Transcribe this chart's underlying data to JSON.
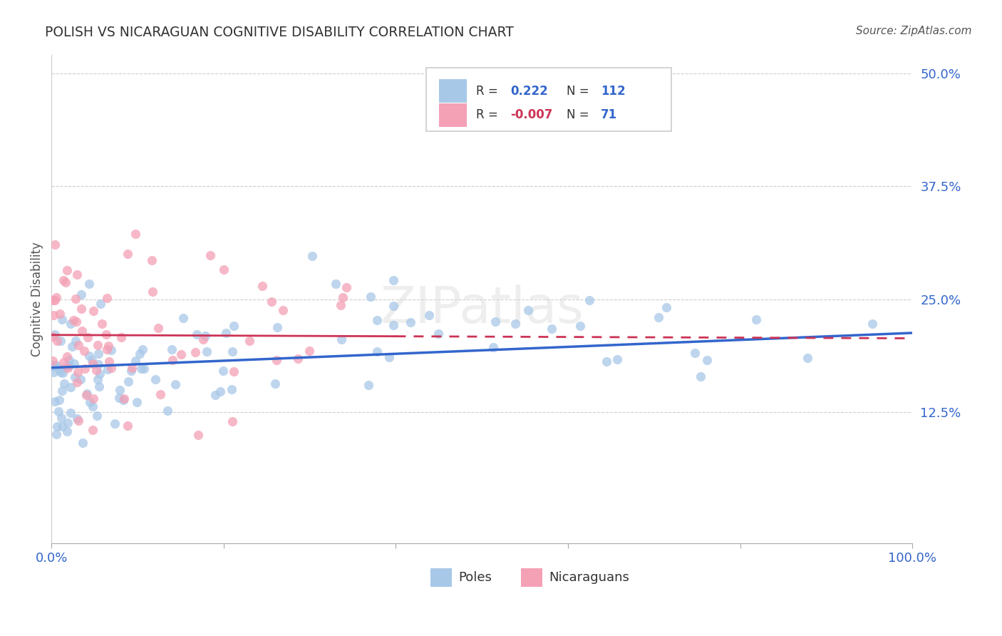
{
  "title": "POLISH VS NICARAGUAN COGNITIVE DISABILITY CORRELATION CHART",
  "source": "Source: ZipAtlas.com",
  "ylabel": "Cognitive Disability",
  "watermark": "ZIPatlas",
  "xlim": [
    0.0,
    1.0
  ],
  "ylim": [
    -0.02,
    0.52
  ],
  "poles_R": 0.222,
  "poles_N": 112,
  "nic_R": -0.007,
  "nic_N": 71,
  "poles_color": "#a8c8e8",
  "nic_color": "#f4a0b5",
  "trend_poles_color": "#3366cc",
  "trend_nic_color": "#cc3355",
  "background_color": "#ffffff",
  "grid_color": "#cccccc",
  "ytick_vals": [
    0.125,
    0.25,
    0.375,
    0.5
  ],
  "ytick_labels": [
    "12.5%",
    "25.0%",
    "37.5%",
    "50.0%"
  ],
  "xtick_vals": [
    0.0,
    1.0
  ],
  "xtick_labels": [
    "0.0%",
    "100.0%"
  ],
  "legend_R_color": "#3366cc",
  "legend_neg_R_color": "#cc3355",
  "legend_N_color": "#3366cc"
}
